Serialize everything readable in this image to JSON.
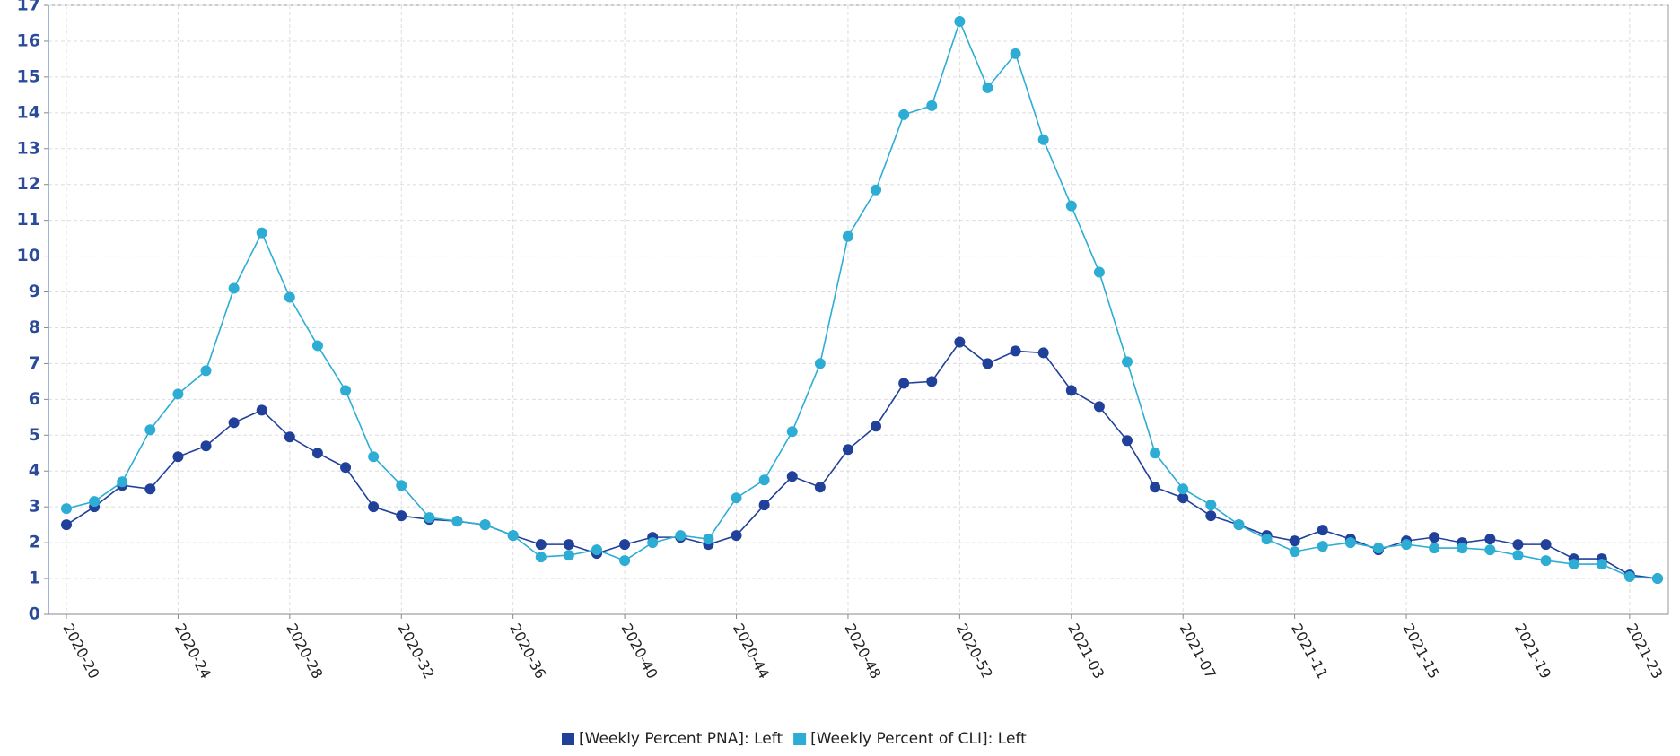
{
  "chart_data": {
    "type": "line",
    "categories": [
      "2020-20",
      null,
      null,
      null,
      "2020-24",
      null,
      null,
      null,
      "2020-28",
      null,
      null,
      null,
      "2020-32",
      null,
      null,
      null,
      "2020-36",
      null,
      null,
      null,
      "2020-40",
      null,
      null,
      null,
      "2020-44",
      null,
      null,
      null,
      "2020-48",
      null,
      null,
      null,
      "2020-52",
      null,
      null,
      null,
      "2021-03",
      null,
      null,
      null,
      "2021-07",
      null,
      null,
      null,
      "2021-11",
      null,
      null,
      null,
      "2021-15",
      null,
      null,
      null,
      "2021-19",
      null,
      null,
      null,
      "2021-23",
      null
    ],
    "series": [
      {
        "name": "[Weekly Percent PNA]: Left",
        "color": "#21409a",
        "values": [
          2.5,
          3.0,
          3.6,
          3.5,
          4.4,
          4.7,
          5.35,
          5.7,
          4.95,
          4.5,
          4.1,
          3.0,
          2.75,
          2.65,
          2.6,
          2.5,
          2.2,
          1.95,
          1.95,
          1.7,
          1.95,
          2.15,
          2.15,
          1.95,
          2.2,
          3.05,
          3.85,
          3.55,
          4.6,
          5.25,
          6.45,
          6.5,
          7.6,
          7.0,
          7.35,
          7.3,
          6.25,
          5.8,
          4.85,
          3.55,
          3.25,
          2.75,
          2.5,
          2.2,
          2.05,
          2.35,
          2.1,
          1.8,
          2.05,
          2.15,
          2.0,
          2.1,
          1.95,
          1.95,
          1.55,
          1.55,
          1.1,
          1.0
        ]
      },
      {
        "name": "[Weekly Percent of CLI]: Left",
        "color": "#2eadd4",
        "values": [
          2.95,
          3.15,
          3.7,
          5.15,
          6.15,
          6.8,
          9.1,
          10.65,
          8.85,
          7.5,
          6.25,
          4.4,
          3.6,
          2.7,
          2.6,
          2.5,
          2.2,
          1.6,
          1.65,
          1.8,
          1.5,
          2.0,
          2.2,
          2.1,
          3.25,
          3.75,
          5.1,
          7.0,
          10.55,
          11.85,
          13.95,
          14.2,
          16.55,
          14.7,
          15.65,
          13.25,
          11.4,
          9.55,
          7.05,
          4.5,
          3.5,
          3.05,
          2.5,
          2.1,
          1.75,
          1.9,
          2.0,
          1.85,
          1.95,
          1.85,
          1.85,
          1.8,
          1.65,
          1.5,
          1.4,
          1.4,
          1.05,
          1.0
        ]
      }
    ],
    "ylim": [
      0,
      17
    ],
    "yticks": [
      0,
      1,
      2,
      3,
      4,
      5,
      6,
      7,
      8,
      9,
      10,
      11,
      12,
      13,
      14,
      15,
      16,
      17
    ],
    "grid": true
  }
}
